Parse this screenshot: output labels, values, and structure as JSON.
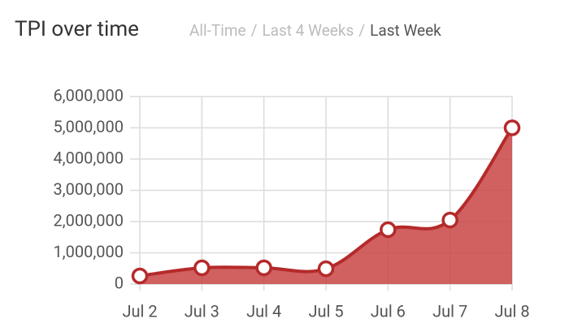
{
  "chart_data": {
    "type": "area",
    "title": "TPI over time",
    "tabs": [
      "All-Time",
      "Last 4 Weeks",
      "Last Week"
    ],
    "tab_separator": "/",
    "active_tab": 2,
    "categories": [
      "Jul 2",
      "Jul 3",
      "Jul 4",
      "Jul 5",
      "Jul 6",
      "Jul 7",
      "Jul 8"
    ],
    "values": [
      260000,
      520000,
      520000,
      490000,
      1740000,
      2050000,
      5000000
    ],
    "color": "#b52a2a",
    "fill_color": "#c94444",
    "ylim": [
      0,
      6000000
    ],
    "yticks": [
      0,
      {
        "value": 1000000,
        "label": "1,000,000"
      },
      {
        "value": 2000000,
        "label": "2,000,000"
      },
      {
        "value": 3000000,
        "label": "3,000,000"
      },
      {
        "value": 4000000,
        "label": "4,000,000"
      },
      {
        "value": 5000000,
        "label": "5,000,000"
      },
      {
        "value": 6000000,
        "label": "6,000,000"
      }
    ],
    "grid": true
  }
}
